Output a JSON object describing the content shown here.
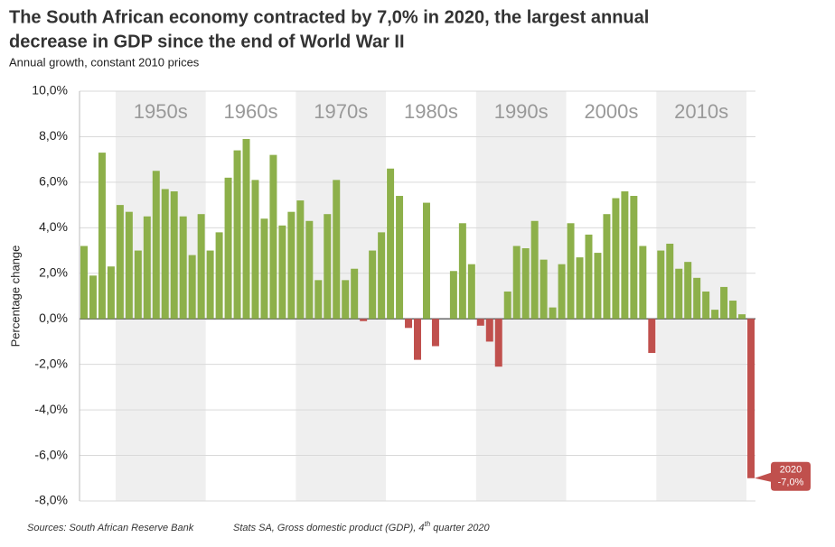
{
  "chart_data": {
    "type": "bar",
    "title": [
      "The South African economy contracted by 7,0% in 2020, the largest annual",
      "decrease in GDP since the end of World War II"
    ],
    "subtitle": "Annual growth, constant 2010 prices",
    "y_label": "Percentage change",
    "decades": [
      "1950s",
      "1960s",
      "1970s",
      "1980s",
      "1990s",
      "2000s",
      "2010s"
    ],
    "categories": [
      null,
      null,
      null,
      null,
      null,
      null,
      null,
      null,
      null,
      null,
      null,
      null,
      null,
      null,
      null,
      null,
      null,
      null,
      null,
      null,
      null,
      null,
      null,
      null,
      null,
      null,
      null,
      null,
      null,
      null,
      null,
      null,
      null,
      null,
      null,
      null,
      null,
      null,
      null,
      null,
      null,
      null,
      null,
      null,
      null,
      null,
      null,
      null,
      null,
      null,
      null,
      null,
      null,
      null,
      null,
      null,
      null,
      null,
      null,
      null,
      null,
      null,
      null,
      null,
      null,
      null,
      null,
      null,
      null,
      null,
      null,
      null,
      null,
      null,
      "2020"
    ],
    "values": [
      3.2,
      1.9,
      7.3,
      2.3,
      5.0,
      4.7,
      3.0,
      4.5,
      6.5,
      5.7,
      5.6,
      4.5,
      2.8,
      4.6,
      3.0,
      3.8,
      6.2,
      7.4,
      7.9,
      6.1,
      4.4,
      7.2,
      4.1,
      4.7,
      5.2,
      4.3,
      1.7,
      4.6,
      6.1,
      1.7,
      2.2,
      -0.1,
      3.0,
      3.8,
      6.6,
      5.4,
      -0.4,
      -1.8,
      5.1,
      -1.2,
      0.0,
      2.1,
      4.2,
      2.4,
      -0.3,
      -1.0,
      -2.1,
      1.2,
      3.2,
      3.1,
      4.3,
      2.6,
      0.5,
      2.4,
      4.2,
      2.7,
      3.7,
      2.9,
      4.6,
      5.3,
      5.6,
      5.4,
      3.2,
      -1.5,
      3.0,
      3.3,
      2.2,
      2.5,
      1.8,
      1.2,
      0.4,
      1.4,
      0.8,
      0.2,
      -7.0
    ],
    "value_labels": [
      null,
      null,
      null,
      null,
      null,
      null,
      null,
      null,
      null,
      null,
      null,
      null,
      null,
      null,
      null,
      null,
      null,
      null,
      null,
      null,
      null,
      null,
      null,
      null,
      null,
      null,
      null,
      null,
      null,
      null,
      null,
      null,
      null,
      null,
      null,
      null,
      null,
      null,
      null,
      null,
      null,
      null,
      null,
      null,
      null,
      null,
      null,
      null,
      null,
      null,
      null,
      null,
      null,
      null,
      null,
      null,
      null,
      null,
      null,
      null,
      null,
      null,
      null,
      null,
      null,
      null,
      null,
      null,
      null,
      null,
      null,
      null,
      null,
      null,
      "-7,0%"
    ],
    "positive_color": "#8db04a",
    "negative_color": "#c0504d",
    "ylim": [
      -8,
      10
    ],
    "yticks": [
      {
        "value": -8,
        "label": "-8,0%"
      },
      {
        "value": -6,
        "label": "-6,0%"
      },
      {
        "value": -4,
        "label": "-4,0%"
      },
      {
        "value": -2,
        "label": "-2,0%"
      },
      {
        "value": 0,
        "label": "0,0%"
      },
      {
        "value": 2,
        "label": "2,0%"
      },
      {
        "value": 4,
        "label": "4,0%"
      },
      {
        "value": 6,
        "label": "6,0%"
      },
      {
        "value": 8,
        "label": "8,0%"
      },
      {
        "value": 10,
        "label": "10,0%"
      }
    ],
    "grid": true,
    "sources": [
      "Sources: South African Reserve Bank",
      "Stats SA, Gross domestic product (GDP), 4",
      "th",
      " quarter 2020"
    ]
  }
}
